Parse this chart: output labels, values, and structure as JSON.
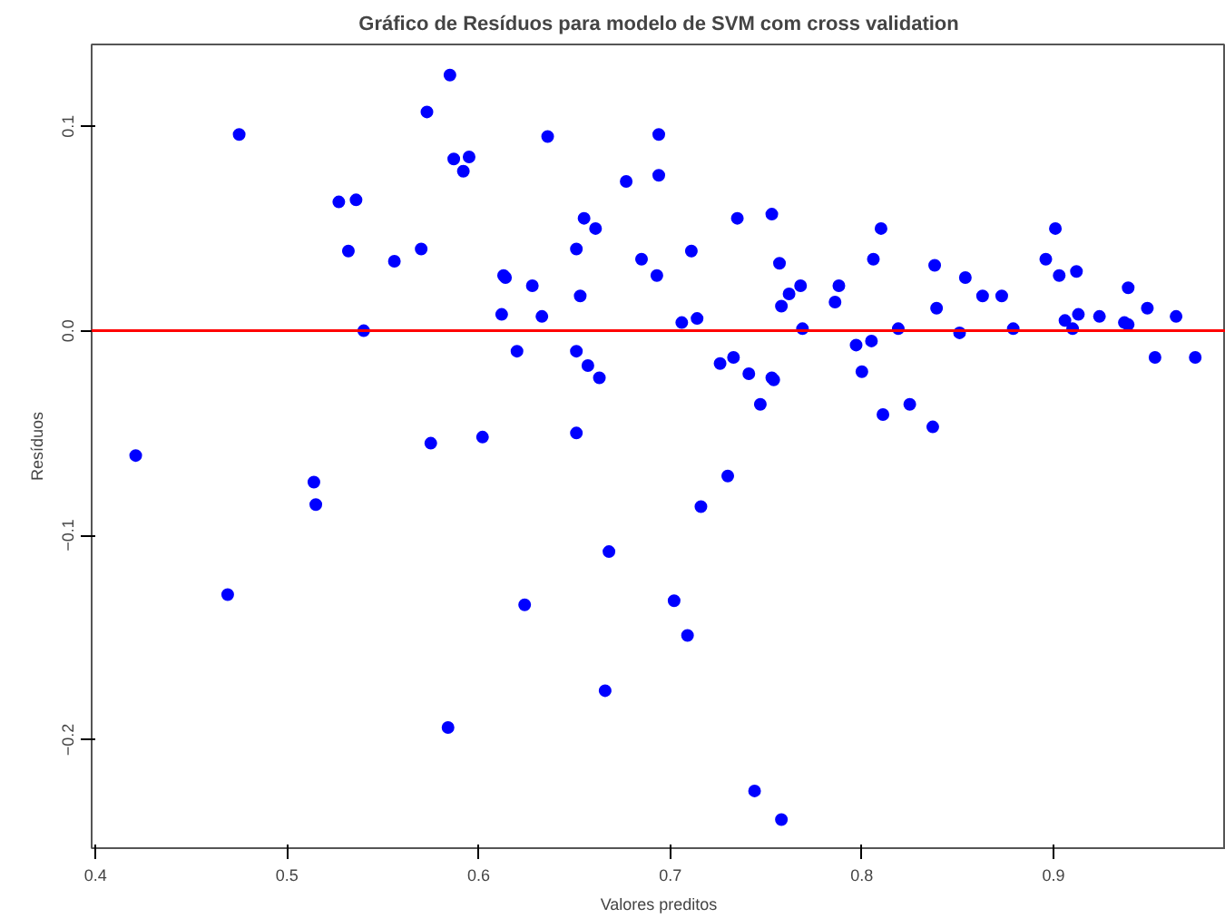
{
  "chart_data": {
    "type": "scatter",
    "title": "Gráfico de Resíduos para modelo de SVM com cross validation",
    "xlabel": "Valores preditos",
    "ylabel": "Resíduos",
    "x": [
      0.475,
      0.585,
      0.573,
      0.587,
      0.595,
      0.592,
      0.636,
      0.527,
      0.536,
      0.532,
      0.556,
      0.57,
      0.54,
      0.677,
      0.694,
      0.694,
      0.655,
      0.661,
      0.651,
      0.685,
      0.693,
      0.613,
      0.614,
      0.628,
      0.653,
      0.612,
      0.633,
      0.62,
      0.651,
      0.657,
      0.663,
      0.421,
      0.575,
      0.602,
      0.651,
      0.706,
      0.714,
      0.711,
      0.735,
      0.753,
      0.757,
      0.762,
      0.768,
      0.758,
      0.769,
      0.786,
      0.788,
      0.806,
      0.81,
      0.819,
      0.797,
      0.805,
      0.8,
      0.811,
      0.825,
      0.837,
      0.838,
      0.839,
      0.854,
      0.863,
      0.873,
      0.851,
      0.879,
      0.896,
      0.901,
      0.903,
      0.912,
      0.906,
      0.91,
      0.913,
      0.924,
      0.937,
      0.939,
      0.939,
      0.949,
      0.964,
      0.953,
      0.974,
      0.726,
      0.733,
      0.741,
      0.753,
      0.754,
      0.747,
      0.73,
      0.514,
      0.515,
      0.469,
      0.624,
      0.668,
      0.666,
      0.584,
      0.716,
      0.702,
      0.709,
      0.744,
      0.758
    ],
    "series": [
      {
        "color": "#0000ff",
        "values": [
          0.096,
          0.125,
          0.107,
          0.084,
          0.085,
          0.078,
          0.095,
          0.063,
          0.064,
          0.039,
          0.034,
          0.04,
          0.0,
          0.073,
          0.096,
          0.076,
          0.055,
          0.05,
          0.04,
          0.035,
          0.027,
          0.027,
          0.026,
          0.022,
          0.017,
          0.008,
          0.007,
          -0.01,
          -0.01,
          -0.017,
          -0.023,
          -0.061,
          -0.055,
          -0.052,
          -0.05,
          0.004,
          0.006,
          0.039,
          0.055,
          0.057,
          0.033,
          0.018,
          0.022,
          0.012,
          0.001,
          0.014,
          0.022,
          0.035,
          0.05,
          0.001,
          -0.007,
          -0.005,
          -0.02,
          -0.041,
          -0.036,
          -0.047,
          0.032,
          0.011,
          0.026,
          0.017,
          0.017,
          -0.001,
          0.001,
          0.035,
          0.05,
          0.027,
          0.029,
          0.005,
          0.001,
          0.008,
          0.007,
          0.004,
          0.003,
          0.021,
          0.011,
          0.007,
          -0.013,
          -0.013,
          -0.016,
          -0.013,
          -0.021,
          -0.023,
          -0.024,
          -0.036,
          -0.071,
          -0.074,
          -0.085,
          -0.129,
          -0.134,
          -0.108,
          -0.176,
          -0.194,
          -0.086,
          -0.132,
          -0.149,
          -0.225,
          -0.239
        ]
      }
    ],
    "xlim": [
      0.398,
      0.99
    ],
    "ylim": [
      -0.253,
      0.14
    ],
    "xticks": [
      0.4,
      0.5,
      0.6,
      0.7,
      0.8,
      0.9
    ],
    "yticks": [
      -0.2,
      -0.1,
      {
        "value": 0,
        "label": "0.0"
      },
      0.1
    ],
    "ref_lines": [
      {
        "axis": "y",
        "value": 0,
        "color": "#ff0000"
      }
    ],
    "grid": false,
    "marker": "circle"
  }
}
